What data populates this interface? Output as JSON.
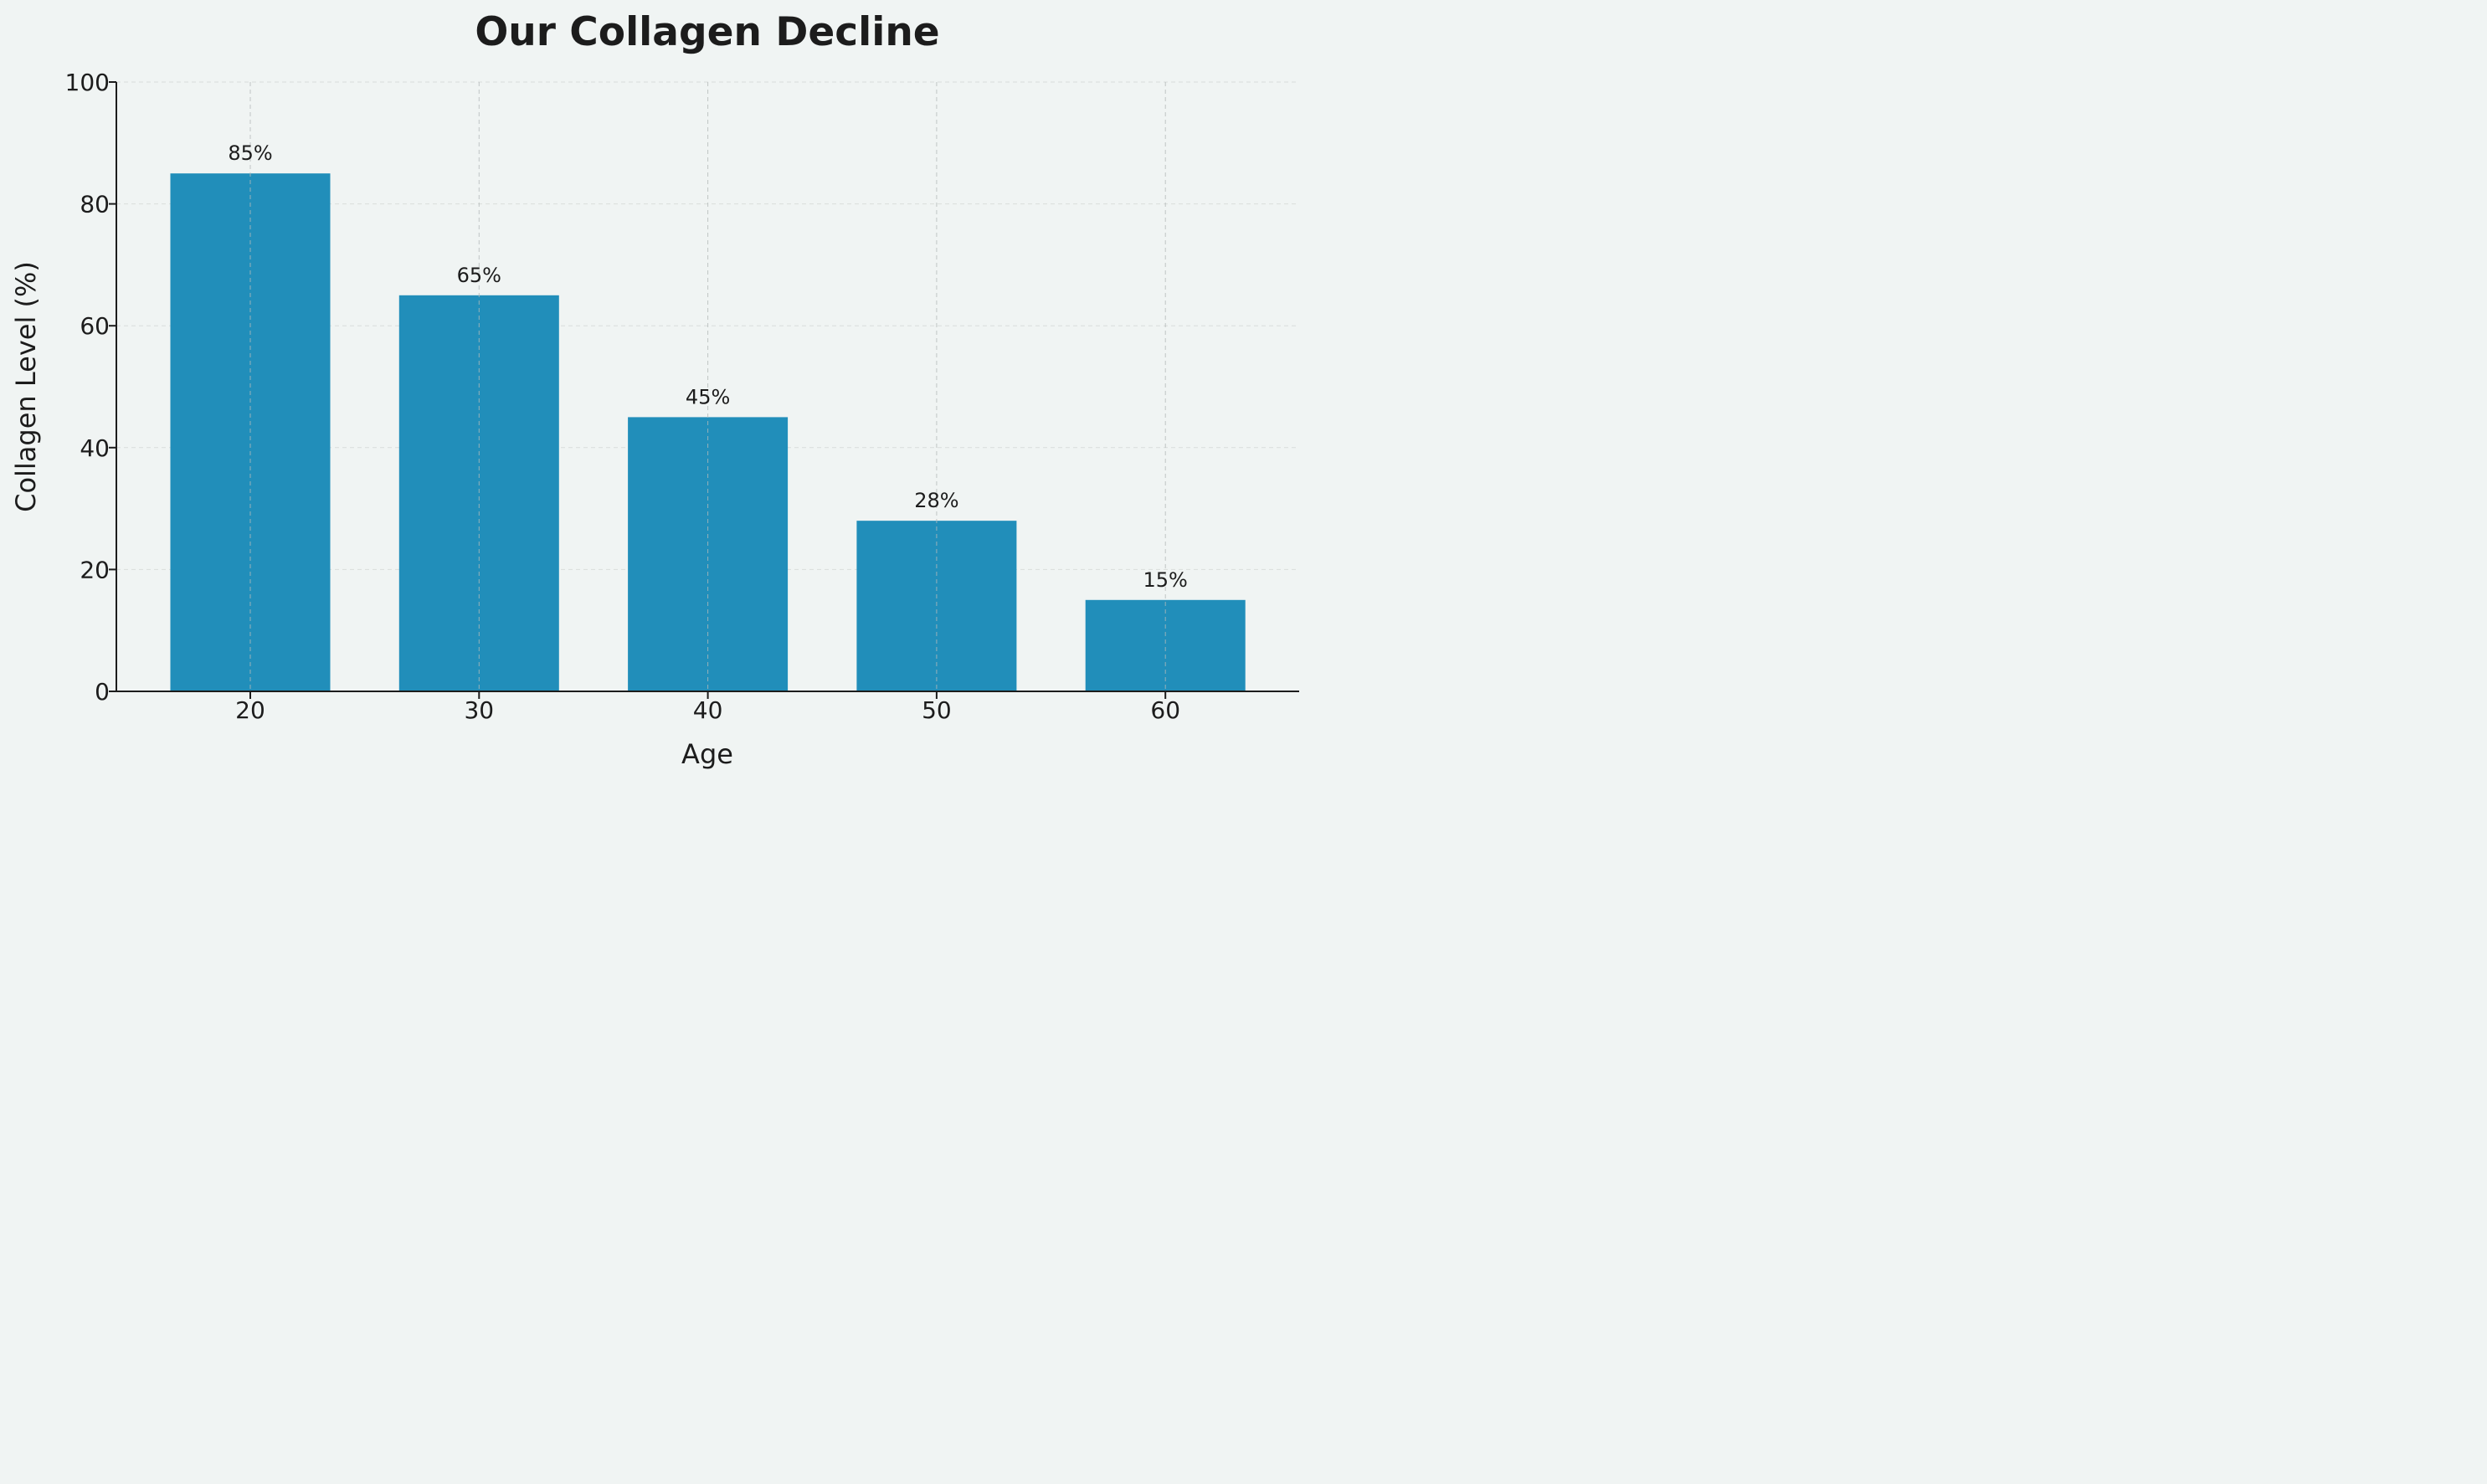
{
  "chart_data": {
    "type": "bar",
    "title": "Our Collagen Decline",
    "xlabel": "Age",
    "ylabel": "Collagen Level (%)",
    "categories": [
      "20",
      "30",
      "40",
      "50",
      "60"
    ],
    "values": [
      85,
      65,
      45,
      28,
      15
    ],
    "data_labels": [
      "85%",
      "65%",
      "45%",
      "28%",
      "15%"
    ],
    "ylim": [
      0,
      100
    ],
    "yticks": [
      "0",
      "20",
      "40",
      "60",
      "80",
      "100"
    ],
    "grid": true,
    "legend": "none",
    "colors": {
      "bar": "#218eba",
      "background": "#f0f4f3",
      "grid": "#c9cdcc",
      "axis": "#1c1c1c",
      "text": "#1c1c1c"
    }
  }
}
